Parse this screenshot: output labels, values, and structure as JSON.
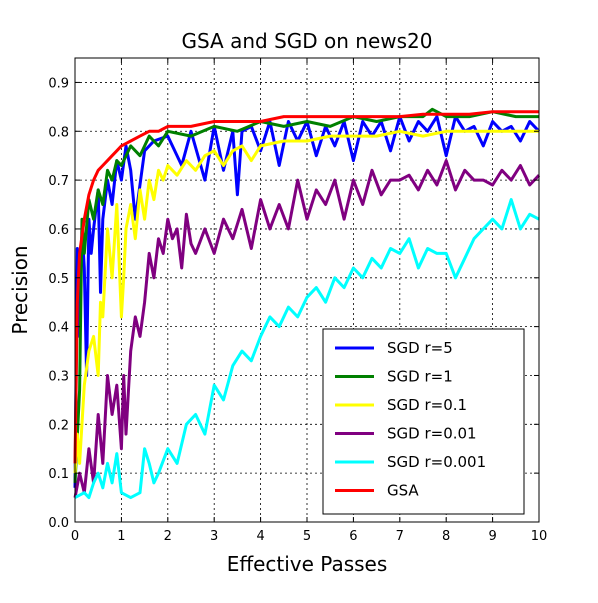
{
  "chart_data": {
    "type": "line",
    "title": "GSA and SGD on news20",
    "xlabel": "Effective Passes",
    "ylabel": "Precision",
    "xlim": [
      0,
      10
    ],
    "ylim": [
      0.0,
      0.95
    ],
    "xticks": [
      "0",
      "1",
      "2",
      "3",
      "4",
      "5",
      "6",
      "7",
      "8",
      "9",
      "10"
    ],
    "yticks": [
      "0.0",
      "0.1",
      "0.2",
      "0.3",
      "0.4",
      "0.5",
      "0.6",
      "0.7",
      "0.8",
      "0.9"
    ],
    "grid": true,
    "legend_position": "bottom-right",
    "series": [
      {
        "name": "SGD r=5",
        "color": "#0000ff",
        "x": [
          0.0,
          0.05,
          0.1,
          0.15,
          0.2,
          0.25,
          0.3,
          0.35,
          0.4,
          0.5,
          0.55,
          0.6,
          0.7,
          0.8,
          0.9,
          1.0,
          1.1,
          1.2,
          1.3,
          1.5,
          1.7,
          2.0,
          2.3,
          2.5,
          2.8,
          3.0,
          3.2,
          3.4,
          3.5,
          3.6,
          3.8,
          4.0,
          4.2,
          4.4,
          4.6,
          4.8,
          5.0,
          5.2,
          5.4,
          5.6,
          5.8,
          6.0,
          6.2,
          6.4,
          6.6,
          6.8,
          7.0,
          7.2,
          7.4,
          7.6,
          7.8,
          8.0,
          8.2,
          8.4,
          8.6,
          8.8,
          9.0,
          9.2,
          9.4,
          9.6,
          9.8,
          10.0
        ],
        "values": [
          0.07,
          0.56,
          0.38,
          0.6,
          0.52,
          0.3,
          0.62,
          0.55,
          0.6,
          0.68,
          0.47,
          0.62,
          0.7,
          0.65,
          0.74,
          0.7,
          0.77,
          0.72,
          0.62,
          0.76,
          0.78,
          0.79,
          0.73,
          0.8,
          0.7,
          0.81,
          0.72,
          0.8,
          0.67,
          0.8,
          0.81,
          0.76,
          0.82,
          0.73,
          0.82,
          0.78,
          0.82,
          0.75,
          0.81,
          0.77,
          0.82,
          0.74,
          0.82,
          0.79,
          0.82,
          0.76,
          0.83,
          0.78,
          0.82,
          0.8,
          0.83,
          0.75,
          0.83,
          0.8,
          0.81,
          0.77,
          0.82,
          0.8,
          0.81,
          0.78,
          0.82,
          0.8
        ]
      },
      {
        "name": "SGD r=1",
        "color": "#008000",
        "x": [
          0.0,
          0.1,
          0.15,
          0.2,
          0.3,
          0.4,
          0.5,
          0.6,
          0.7,
          0.8,
          0.9,
          1.0,
          1.2,
          1.4,
          1.6,
          1.8,
          2.0,
          2.5,
          3.0,
          3.5,
          4.0,
          4.5,
          5.0,
          5.5,
          6.0,
          6.5,
          7.0,
          7.5,
          7.7,
          8.0,
          8.5,
          9.0,
          9.5,
          10.0
        ],
        "values": [
          0.08,
          0.27,
          0.62,
          0.55,
          0.66,
          0.62,
          0.68,
          0.65,
          0.72,
          0.7,
          0.74,
          0.73,
          0.77,
          0.75,
          0.79,
          0.77,
          0.8,
          0.79,
          0.81,
          0.8,
          0.82,
          0.81,
          0.82,
          0.81,
          0.83,
          0.82,
          0.83,
          0.83,
          0.845,
          0.83,
          0.83,
          0.84,
          0.83,
          0.83
        ]
      },
      {
        "name": "SGD r=0.1",
        "color": "#ffff00",
        "x": [
          0.0,
          0.05,
          0.1,
          0.2,
          0.3,
          0.4,
          0.5,
          0.55,
          0.6,
          0.7,
          0.8,
          0.9,
          1.0,
          1.05,
          1.1,
          1.2,
          1.3,
          1.4,
          1.5,
          1.6,
          1.7,
          1.8,
          1.9,
          2.0,
          2.2,
          2.4,
          2.6,
          2.8,
          3.0,
          3.2,
          3.4,
          3.6,
          3.8,
          4.0,
          4.5,
          5.0,
          5.5,
          6.0,
          6.5,
          7.0,
          7.5,
          8.0,
          8.5,
          9.0,
          9.5,
          10.0
        ],
        "values": [
          0.1,
          0.18,
          0.12,
          0.28,
          0.35,
          0.38,
          0.3,
          0.45,
          0.42,
          0.6,
          0.5,
          0.65,
          0.42,
          0.5,
          0.6,
          0.65,
          0.58,
          0.68,
          0.62,
          0.7,
          0.66,
          0.72,
          0.7,
          0.73,
          0.71,
          0.74,
          0.72,
          0.75,
          0.76,
          0.73,
          0.76,
          0.77,
          0.74,
          0.77,
          0.78,
          0.78,
          0.79,
          0.79,
          0.79,
          0.8,
          0.79,
          0.8,
          0.8,
          0.8,
          0.8,
          0.8
        ]
      },
      {
        "name": "SGD r=0.01",
        "color": "#800080",
        "x": [
          0.0,
          0.1,
          0.2,
          0.3,
          0.4,
          0.5,
          0.6,
          0.7,
          0.8,
          0.9,
          1.0,
          1.05,
          1.1,
          1.2,
          1.3,
          1.4,
          1.5,
          1.6,
          1.7,
          1.8,
          1.9,
          2.0,
          2.1,
          2.2,
          2.3,
          2.4,
          2.5,
          2.6,
          2.8,
          3.0,
          3.2,
          3.4,
          3.6,
          3.8,
          4.0,
          4.2,
          4.4,
          4.6,
          4.8,
          5.0,
          5.2,
          5.4,
          5.6,
          5.8,
          6.0,
          6.2,
          6.4,
          6.6,
          6.8,
          7.0,
          7.2,
          7.4,
          7.6,
          7.8,
          8.0,
          8.2,
          8.4,
          8.6,
          8.8,
          9.0,
          9.2,
          9.4,
          9.6,
          9.8,
          10.0
        ],
        "values": [
          0.05,
          0.1,
          0.06,
          0.15,
          0.08,
          0.22,
          0.12,
          0.3,
          0.22,
          0.28,
          0.15,
          0.3,
          0.18,
          0.35,
          0.42,
          0.38,
          0.45,
          0.55,
          0.5,
          0.58,
          0.55,
          0.62,
          0.58,
          0.6,
          0.52,
          0.63,
          0.57,
          0.55,
          0.6,
          0.55,
          0.62,
          0.58,
          0.64,
          0.56,
          0.66,
          0.6,
          0.65,
          0.6,
          0.7,
          0.62,
          0.68,
          0.65,
          0.7,
          0.62,
          0.7,
          0.65,
          0.72,
          0.67,
          0.7,
          0.7,
          0.71,
          0.68,
          0.72,
          0.69,
          0.74,
          0.68,
          0.72,
          0.7,
          0.7,
          0.69,
          0.72,
          0.7,
          0.73,
          0.69,
          0.71
        ]
      },
      {
        "name": "SGD r=0.001",
        "color": "#00ffff",
        "x": [
          0.0,
          0.2,
          0.3,
          0.4,
          0.5,
          0.6,
          0.7,
          0.8,
          0.9,
          1.0,
          1.2,
          1.4,
          1.5,
          1.6,
          1.7,
          1.8,
          2.0,
          2.2,
          2.4,
          2.6,
          2.8,
          3.0,
          3.2,
          3.4,
          3.6,
          3.8,
          4.0,
          4.2,
          4.4,
          4.6,
          4.8,
          5.0,
          5.2,
          5.4,
          5.6,
          5.8,
          6.0,
          6.2,
          6.4,
          6.6,
          6.8,
          7.0,
          7.2,
          7.4,
          7.6,
          7.8,
          8.0,
          8.2,
          8.4,
          8.6,
          8.8,
          9.0,
          9.2,
          9.4,
          9.6,
          9.8,
          10.0
        ],
        "values": [
          0.05,
          0.06,
          0.05,
          0.08,
          0.1,
          0.07,
          0.12,
          0.08,
          0.14,
          0.06,
          0.05,
          0.06,
          0.15,
          0.12,
          0.08,
          0.1,
          0.15,
          0.12,
          0.2,
          0.22,
          0.18,
          0.28,
          0.25,
          0.32,
          0.35,
          0.33,
          0.38,
          0.42,
          0.4,
          0.44,
          0.42,
          0.46,
          0.48,
          0.45,
          0.5,
          0.48,
          0.52,
          0.5,
          0.54,
          0.52,
          0.56,
          0.55,
          0.58,
          0.52,
          0.56,
          0.55,
          0.55,
          0.5,
          0.54,
          0.58,
          0.6,
          0.62,
          0.6,
          0.66,
          0.6,
          0.63,
          0.62
        ]
      },
      {
        "name": "GSA",
        "color": "#ff0000",
        "x": [
          0.0,
          0.05,
          0.1,
          0.2,
          0.3,
          0.4,
          0.5,
          0.6,
          0.7,
          0.8,
          0.9,
          1.0,
          1.2,
          1.4,
          1.6,
          1.8,
          2.0,
          2.5,
          3.0,
          3.5,
          4.0,
          4.5,
          5.0,
          5.5,
          6.0,
          6.5,
          7.0,
          7.5,
          8.0,
          8.5,
          9.0,
          9.5,
          10.0
        ],
        "values": [
          0.12,
          0.45,
          0.55,
          0.62,
          0.67,
          0.7,
          0.72,
          0.73,
          0.74,
          0.75,
          0.76,
          0.77,
          0.78,
          0.79,
          0.8,
          0.8,
          0.81,
          0.81,
          0.82,
          0.82,
          0.82,
          0.83,
          0.83,
          0.83,
          0.83,
          0.83,
          0.83,
          0.835,
          0.835,
          0.835,
          0.84,
          0.84,
          0.84
        ]
      }
    ]
  }
}
